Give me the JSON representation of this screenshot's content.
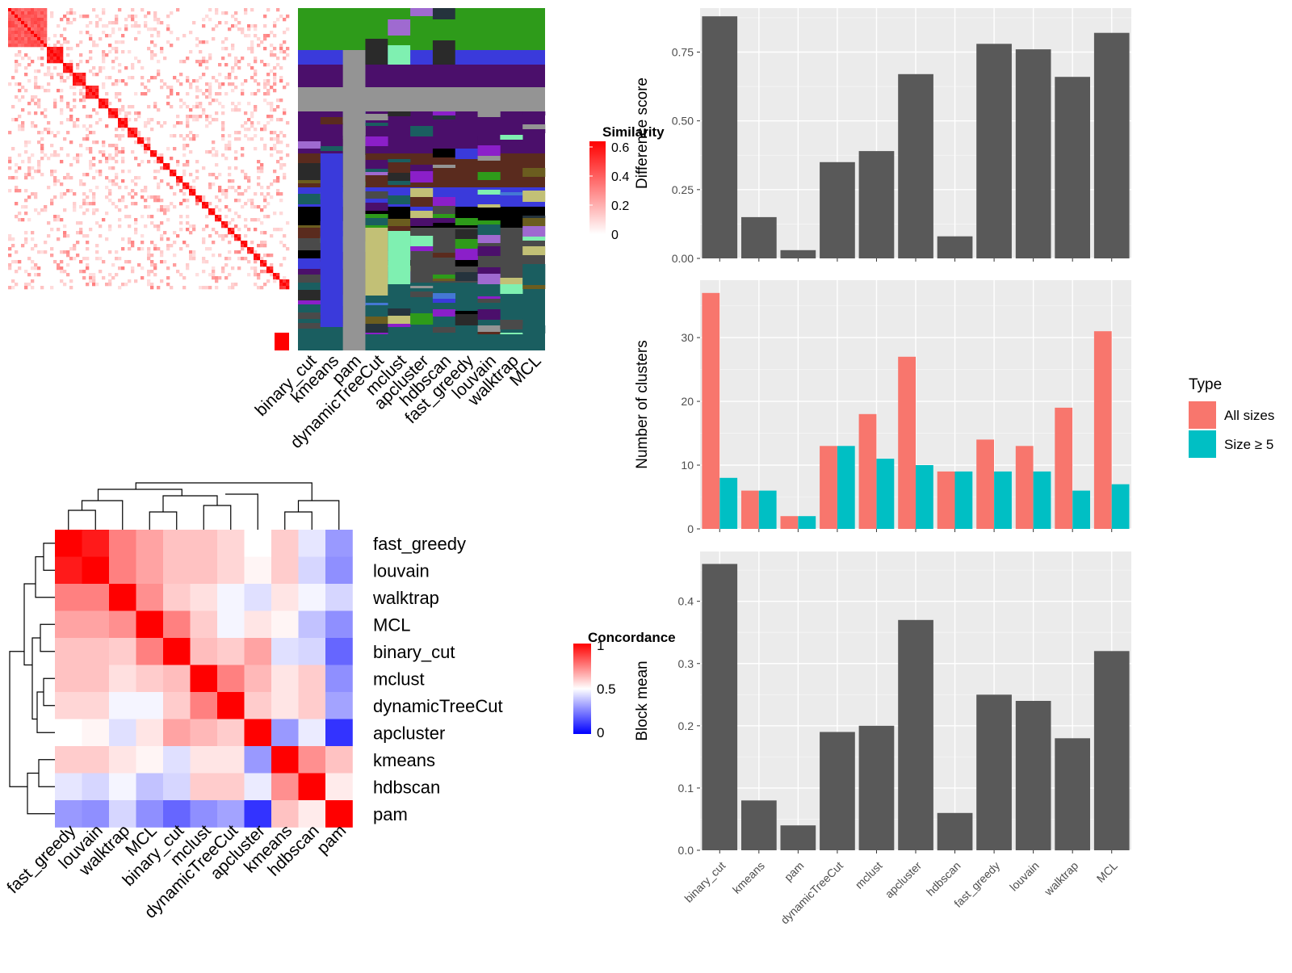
{
  "methods": [
    "binary_cut",
    "kmeans",
    "pam",
    "dynamicTreeCut",
    "mclust",
    "apcluster",
    "hdbscan",
    "fast_greedy",
    "louvain",
    "walktrap",
    "MCL"
  ],
  "similarity_heatmap": {
    "legend_title": "Similarity",
    "legend_ticks": [
      0.6,
      0.4,
      0.2,
      0
    ],
    "colors": [
      "#ffffff",
      "#ff0000"
    ]
  },
  "cluster_assignment_panel": {
    "columns": [
      "binary_cut",
      "kmeans",
      "pam",
      "dynamicTreeCut",
      "mclust",
      "apcluster",
      "hdbscan",
      "fast_greedy",
      "louvain",
      "walktrap",
      "MCL"
    ]
  },
  "concordance_heatmap": {
    "legend_title": "Concordance",
    "legend_ticks": [
      1,
      0.5,
      0
    ],
    "row_order": [
      "fast_greedy",
      "louvain",
      "walktrap",
      "MCL",
      "binary_cut",
      "mclust",
      "dynamicTreeCut",
      "apcluster",
      "kmeans",
      "hdbscan",
      "pam"
    ],
    "col_order": [
      "fast_greedy",
      "louvain",
      "walktrap",
      "MCL",
      "binary_cut",
      "mclust",
      "dynamicTreeCut",
      "apcluster",
      "kmeans",
      "hdbscan",
      "pam"
    ]
  },
  "chart_data": [
    {
      "type": "bar",
      "categories": [
        "binary_cut",
        "kmeans",
        "pam",
        "dynamicTreeCut",
        "mclust",
        "apcluster",
        "hdbscan",
        "fast_greedy",
        "louvain",
        "walktrap",
        "MCL"
      ],
      "values": [
        0.88,
        0.15,
        0.03,
        0.35,
        0.39,
        0.67,
        0.08,
        0.78,
        0.76,
        0.66,
        0.82
      ],
      "ylabel": "Difference score",
      "ylim": [
        0,
        0.91
      ],
      "yticks": [
        "0.00",
        "0.25",
        "0.50",
        "0.75"
      ],
      "ytick_values": [
        0,
        0.25,
        0.5,
        0.75
      ],
      "bar_color": "#595959"
    },
    {
      "type": "bar",
      "categories": [
        "binary_cut",
        "kmeans",
        "pam",
        "dynamicTreeCut",
        "mclust",
        "apcluster",
        "hdbscan",
        "fast_greedy",
        "louvain",
        "walktrap",
        "MCL"
      ],
      "series": [
        {
          "name": "All sizes",
          "values": [
            37,
            6,
            2,
            13,
            18,
            27,
            9,
            14,
            13,
            19,
            31
          ],
          "color": "#f8766d"
        },
        {
          "name": "Size ≥ 5",
          "values": [
            8,
            6,
            2,
            13,
            11,
            10,
            9,
            9,
            9,
            6,
            7
          ],
          "color": "#00bfc4"
        }
      ],
      "ylabel": "Number of clusters",
      "legend_title": "Type",
      "ylim": [
        0,
        39
      ],
      "yticks": [
        "0",
        "10",
        "20",
        "30"
      ],
      "ytick_values": [
        0,
        10,
        20,
        30
      ]
    },
    {
      "type": "bar",
      "categories": [
        "binary_cut",
        "kmeans",
        "pam",
        "dynamicTreeCut",
        "mclust",
        "apcluster",
        "hdbscan",
        "fast_greedy",
        "louvain",
        "walktrap",
        "MCL"
      ],
      "values": [
        0.46,
        0.08,
        0.04,
        0.19,
        0.2,
        0.37,
        0.06,
        0.25,
        0.24,
        0.18,
        0.32
      ],
      "ylabel": "Block mean",
      "ylim": [
        0,
        0.48
      ],
      "yticks": [
        "0.0",
        "0.1",
        "0.2",
        "0.3",
        "0.4"
      ],
      "ytick_values": [
        0,
        0.1,
        0.2,
        0.3,
        0.4
      ],
      "bar_color": "#595959"
    },
    {
      "type": "heatmap",
      "rows": [
        "fast_greedy",
        "louvain",
        "walktrap",
        "MCL",
        "binary_cut",
        "mclust",
        "dynamicTreeCut",
        "apcluster",
        "kmeans",
        "hdbscan",
        "pam"
      ],
      "cols": [
        "fast_greedy",
        "louvain",
        "walktrap",
        "MCL",
        "binary_cut",
        "mclust",
        "dynamicTreeCut",
        "apcluster",
        "kmeans",
        "hdbscan",
        "pam"
      ],
      "values": [
        [
          1.0,
          0.95,
          0.75,
          0.68,
          0.62,
          0.62,
          0.58,
          0.5,
          0.6,
          0.45,
          0.3
        ],
        [
          0.95,
          1.0,
          0.75,
          0.68,
          0.62,
          0.62,
          0.58,
          0.52,
          0.6,
          0.42,
          0.28
        ],
        [
          0.75,
          0.75,
          1.0,
          0.72,
          0.6,
          0.56,
          0.48,
          0.44,
          0.55,
          0.48,
          0.42
        ],
        [
          0.68,
          0.68,
          0.72,
          1.0,
          0.75,
          0.6,
          0.48,
          0.55,
          0.52,
          0.38,
          0.28
        ],
        [
          0.62,
          0.62,
          0.6,
          0.75,
          1.0,
          0.63,
          0.6,
          0.68,
          0.44,
          0.42,
          0.2
        ],
        [
          0.62,
          0.62,
          0.56,
          0.6,
          0.63,
          1.0,
          0.75,
          0.64,
          0.55,
          0.6,
          0.28
        ],
        [
          0.58,
          0.58,
          0.48,
          0.48,
          0.6,
          0.75,
          1.0,
          0.6,
          0.55,
          0.6,
          0.32
        ],
        [
          0.5,
          0.52,
          0.44,
          0.55,
          0.68,
          0.64,
          0.6,
          1.0,
          0.3,
          0.46,
          0.1
        ],
        [
          0.6,
          0.6,
          0.55,
          0.52,
          0.44,
          0.55,
          0.55,
          0.3,
          1.0,
          0.72,
          0.62
        ],
        [
          0.45,
          0.42,
          0.48,
          0.38,
          0.42,
          0.6,
          0.6,
          0.46,
          0.72,
          1.0,
          0.54
        ],
        [
          0.3,
          0.28,
          0.42,
          0.28,
          0.2,
          0.28,
          0.32,
          0.1,
          0.62,
          0.54,
          1.0
        ]
      ]
    }
  ]
}
